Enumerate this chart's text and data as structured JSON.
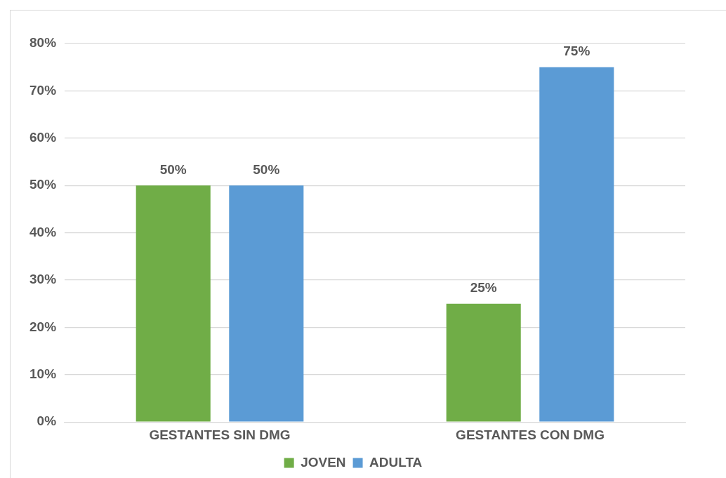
{
  "chart_data": {
    "type": "bar",
    "categories": [
      "GESTANTES SIN DMG",
      "GESTANTES CON DMG"
    ],
    "series": [
      {
        "name": "JOVEN",
        "color": "#70ad47",
        "values": [
          50,
          25
        ],
        "value_labels": [
          "50%",
          "25%"
        ]
      },
      {
        "name": "ADULTA",
        "color": "#5b9bd5",
        "values": [
          50,
          75
        ],
        "value_labels": [
          "50%",
          "75%"
        ]
      }
    ],
    "ylim": [
      0,
      80
    ],
    "yticks": [
      {
        "value": 0,
        "label": "0%"
      },
      {
        "value": 10,
        "label": "10%"
      },
      {
        "value": 20,
        "label": "20%"
      },
      {
        "value": 30,
        "label": "30%"
      },
      {
        "value": 40,
        "label": "40%"
      },
      {
        "value": 50,
        "label": "50%"
      },
      {
        "value": 60,
        "label": "60%"
      },
      {
        "value": 70,
        "label": "70%"
      },
      {
        "value": 80,
        "label": "80%"
      }
    ],
    "grid": "y",
    "legend": "bottom"
  }
}
